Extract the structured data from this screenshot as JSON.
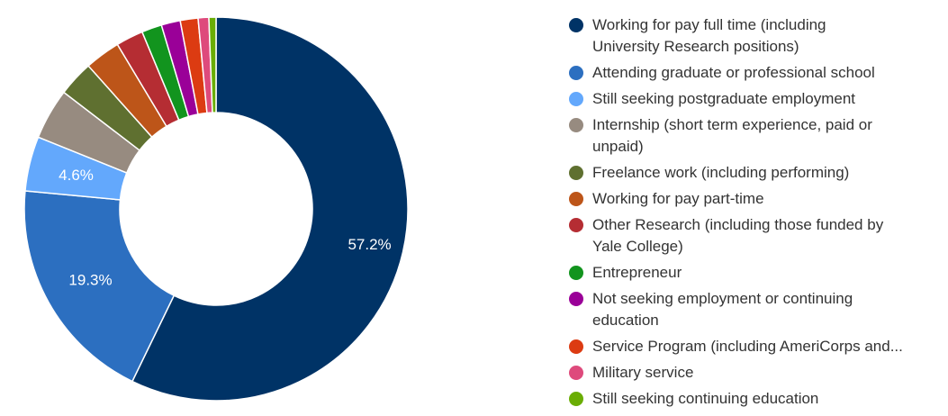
{
  "chart_data": {
    "type": "pie",
    "donut": true,
    "title": "",
    "legend_position": "right",
    "series": [
      {
        "name": "Working for pay full time (including University Research positions)",
        "value": 57.2,
        "color": "#003366",
        "label": "57.2%"
      },
      {
        "name": "Attending graduate or professional school",
        "value": 19.3,
        "color": "#2c6fc0",
        "label": "19.3%"
      },
      {
        "name": "Still seeking postgraduate employment",
        "value": 4.6,
        "color": "#63a8fc",
        "label": "4.6%"
      },
      {
        "name": "Internship (short term experience, paid or unpaid)",
        "value": 4.3,
        "color": "#978b80"
      },
      {
        "name": "Freelance work (including performing)",
        "value": 3.0,
        "color": "#5f7030"
      },
      {
        "name": "Working for pay part-time",
        "value": 3.0,
        "color": "#bd5519"
      },
      {
        "name": "Other Research (including those funded by Yale College)",
        "value": 2.3,
        "color": "#b52d33"
      },
      {
        "name": "Entrepreneur",
        "value": 1.7,
        "color": "#12941e"
      },
      {
        "name": "Not seeking employment or continuing education",
        "value": 1.6,
        "color": "#9a0098"
      },
      {
        "name": "Service Program (including AmeriCorps and...",
        "value": 1.5,
        "color": "#dc3b12"
      },
      {
        "name": "Military service",
        "value": 0.9,
        "color": "#de4a7c"
      },
      {
        "name": "Still seeking continuing education",
        "value": 0.6,
        "color": "#6aad04"
      }
    ]
  }
}
